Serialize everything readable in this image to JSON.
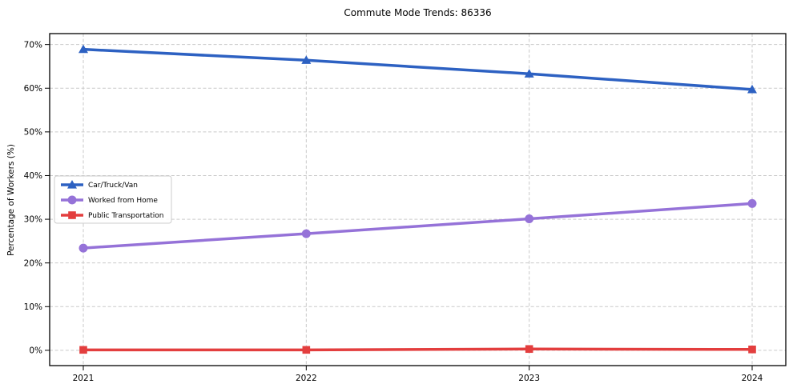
{
  "title": "Commute Mode Trends: 86336",
  "chart_data": {
    "type": "line",
    "title": "Commute Mode Trends: 86336",
    "xlabel": "",
    "ylabel": "Percentage of Workers (%)",
    "x": [
      "2021",
      "2022",
      "2023",
      "2024"
    ],
    "series": [
      {
        "name": "Car/Truck/Van",
        "color": "#2d61c2",
        "marker": "triangle",
        "values": [
          68.9,
          66.4,
          63.3,
          59.7
        ]
      },
      {
        "name": "Worked from Home",
        "color": "#9572d8",
        "marker": "circle",
        "values": [
          23.4,
          26.7,
          30.1,
          33.6
        ]
      },
      {
        "name": "Public Transportation",
        "color": "#e33e3e",
        "marker": "square",
        "values": [
          0.1,
          0.1,
          0.3,
          0.2
        ]
      }
    ],
    "yticks": [
      0,
      10,
      20,
      30,
      40,
      50,
      60,
      70
    ],
    "ytick_suffix": "%",
    "ylim": [
      -3.5,
      72.5
    ],
    "grid": true,
    "legend_position": "center-left"
  }
}
